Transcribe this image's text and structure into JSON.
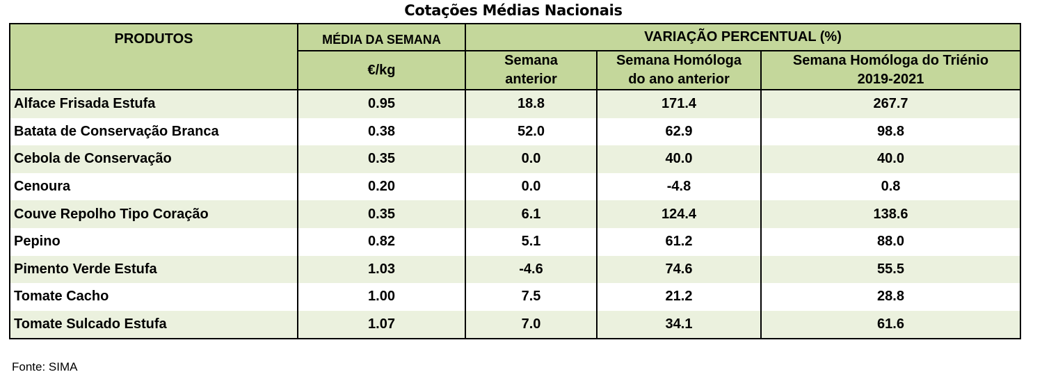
{
  "title": "Cotações Médias Nacionais",
  "headers": {
    "produtos": "PRODUTOS",
    "media": "MÉDIA DA SEMANA",
    "unit": "€/kg",
    "variacao": "VARIAÇÃO PERCENTUAL (%)",
    "semana_line1": "Semana",
    "semana_line2": "anterior",
    "homologa_line1": "Semana Homóloga",
    "homologa_line2": "do ano anterior",
    "trienio_line1": "Semana Homóloga do Triénio",
    "trienio_line2": "2019-2021"
  },
  "rows": [
    {
      "produto": "Alface Frisada Estufa",
      "media": "0.95",
      "semana": "18.8",
      "homologa": "171.4",
      "trienio": "267.7"
    },
    {
      "produto": "Batata de Conservação Branca",
      "media": "0.38",
      "semana": "52.0",
      "homologa": "62.9",
      "trienio": "98.8"
    },
    {
      "produto": "Cebola de Conservação",
      "media": "0.35",
      "semana": "0.0",
      "homologa": "40.0",
      "trienio": "40.0"
    },
    {
      "produto": "Cenoura",
      "media": "0.20",
      "semana": "0.0",
      "homologa": "-4.8",
      "trienio": "0.8"
    },
    {
      "produto": "Couve Repolho Tipo Coração",
      "media": "0.35",
      "semana": "6.1",
      "homologa": "124.4",
      "trienio": "138.6"
    },
    {
      "produto": "Pepino",
      "media": "0.82",
      "semana": "5.1",
      "homologa": "61.2",
      "trienio": "88.0"
    },
    {
      "produto": "Pimento Verde Estufa",
      "media": "1.03",
      "semana": "-4.6",
      "homologa": "74.6",
      "trienio": "55.5"
    },
    {
      "produto": "Tomate Cacho",
      "media": "1.00",
      "semana": "7.5",
      "homologa": "21.2",
      "trienio": "28.8"
    },
    {
      "produto": "Tomate Sulcado Estufa",
      "media": "1.07",
      "semana": "7.0",
      "homologa": "34.1",
      "trienio": "61.6"
    }
  ],
  "source": "Fonte: SIMA",
  "colors": {
    "header_bg": "#c4d79b",
    "row_alt_bg": "#ebf1de"
  }
}
